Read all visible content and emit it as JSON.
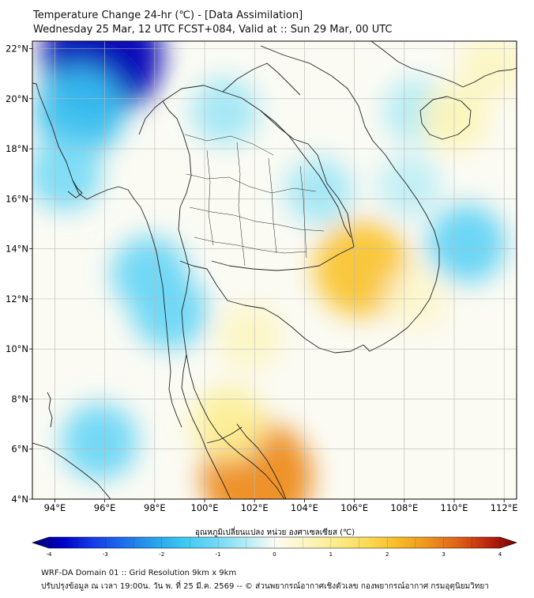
{
  "title": {
    "line1": "Temperature Change 24-hr (℃) - [Data Assimilation]",
    "line2": "Wednesday 25 Mar, 12 UTC FCST+084, Valid at :: Sun 29 Mar, 00 UTC"
  },
  "axes": {
    "lon_labels": [
      "94°E",
      "96°E",
      "98°E",
      "100°E",
      "102°E",
      "104°E",
      "106°E",
      "108°E",
      "110°E",
      "112°E"
    ],
    "lat_labels": [
      "22°N",
      "20°N",
      "18°N",
      "16°N",
      "14°N",
      "12°N",
      "10°N",
      "8°N",
      "6°N",
      "4°N"
    ],
    "lon_range": [
      93.1,
      112.5
    ],
    "lat_range": [
      4.0,
      22.3
    ]
  },
  "colorbar": {
    "label": "อุณหภูมิเปลี่ยนแปลง หน่วย องศาเซลเซียส (℃)",
    "ticks": [
      "-4",
      "-3",
      "-2",
      "-1",
      "0",
      "1",
      "2",
      "3",
      "4"
    ],
    "min": -4,
    "max": 4
  },
  "footer": {
    "line1": "WRF-DA Domain 01 :: Grid Resolution 9km x 9km",
    "line2": "ปรับปรุงข้อมูล ณ เวลา 19:00น. วัน พ. ที่ 25 มี.ค. 2569 -- © ส่วนพยากรณ์อากาศเชิงตัวเลข กองพยากรณ์อากาศ กรมอุตุนิยมวิทยา"
  },
  "colors": {
    "frame": "#000000",
    "grid": "#b8b8b8",
    "border": "#222222",
    "neutral": "#fbfbf4",
    "cool": "#6fd6f2",
    "warm": "#fbe56a"
  },
  "field": {
    "units": "℃",
    "features": [
      {
        "name": "cold-myanmar-north",
        "lon": 95.9,
        "lat": 21.7,
        "value": -3.6
      },
      {
        "name": "cold-myanmar-northwest",
        "lon": 95.0,
        "lat": 19.5,
        "value": -1.6
      },
      {
        "name": "cool-myanmar-west",
        "lon": 94.4,
        "lat": 17.0,
        "value": -0.9
      },
      {
        "name": "cool-upper-laos",
        "lon": 100.8,
        "lat": 19.5,
        "value": -0.6
      },
      {
        "name": "cool-andaman-north",
        "lon": 97.8,
        "lat": 13.0,
        "value": -1.0
      },
      {
        "name": "cool-tenasserim",
        "lon": 98.6,
        "lat": 11.5,
        "value": -1.0
      },
      {
        "name": "cool-andaman-south",
        "lon": 95.8,
        "lat": 6.3,
        "value": -1.0
      },
      {
        "name": "cool-scs-east",
        "lon": 110.5,
        "lat": 14.2,
        "value": -1.1
      },
      {
        "name": "cool-gulf-tonkin",
        "lon": 108.5,
        "lat": 19.5,
        "value": -0.5
      },
      {
        "name": "cool-laos-south",
        "lon": 104.6,
        "lat": 16.3,
        "value": -0.6
      },
      {
        "name": "cool-east-vietnam",
        "lon": 108.2,
        "lat": 16.5,
        "value": -0.4
      },
      {
        "name": "warm-cambodia",
        "lon": 106.3,
        "lat": 13.2,
        "value": 1.9
      },
      {
        "name": "warm-gulf-thailand",
        "lon": 101.8,
        "lat": 10.5,
        "value": 0.5
      },
      {
        "name": "warm-malaysia",
        "lon": 102.1,
        "lat": 4.9,
        "value": 2.6
      },
      {
        "name": "warm-malaysia-north",
        "lon": 101.0,
        "lat": 7.0,
        "value": 0.9
      },
      {
        "name": "warm-hainan",
        "lon": 110.0,
        "lat": 19.2,
        "value": 0.6
      },
      {
        "name": "warm-scs-north",
        "lon": 111.5,
        "lat": 21.3,
        "value": 0.5
      },
      {
        "name": "warm-vietnam-south",
        "lon": 108.5,
        "lat": 12.0,
        "value": 0.4
      }
    ]
  }
}
